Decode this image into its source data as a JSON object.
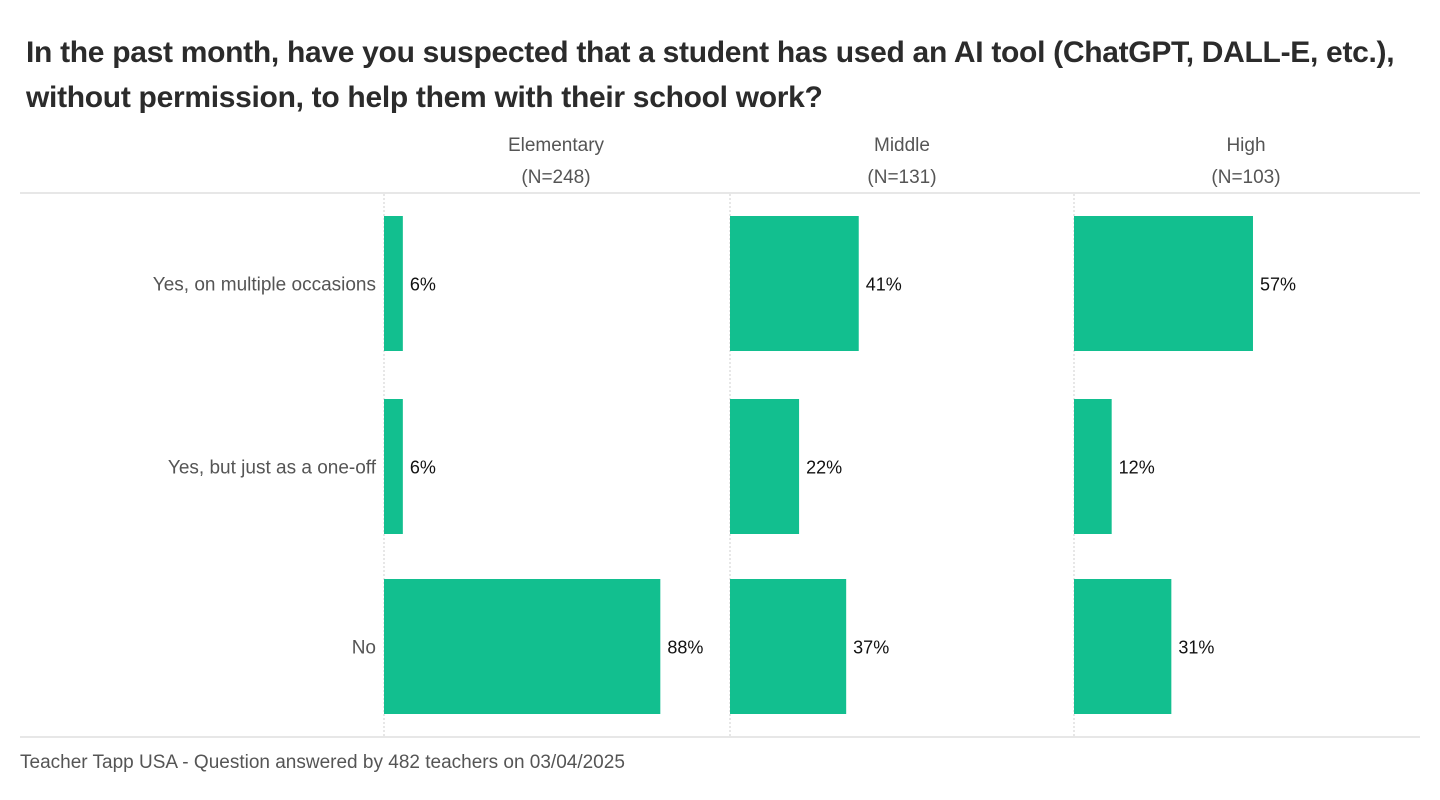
{
  "title": "In the past month, have you suspected that a student has used an AI tool (ChatGPT, DALL-E, etc.), without permission, to help them with their school work?",
  "footer": "Teacher Tapp USA - Question answered by 482 teachers on 03/04/2025",
  "colors": {
    "bar": "#12BF8F",
    "axis": "#cfcfcf"
  },
  "chart_data": {
    "type": "bar",
    "orientation": "horizontal",
    "categories": [
      "Yes, on multiple occasions",
      "Yes, but just as a one-off",
      "No"
    ],
    "series": [
      {
        "name": "Elementary",
        "n_label": "(N=248)",
        "values": [
          6,
          6,
          88
        ],
        "labels": [
          "6%",
          "6%",
          "88%"
        ]
      },
      {
        "name": "Middle",
        "n_label": "(N=131)",
        "values": [
          41,
          22,
          37
        ],
        "labels": [
          "41%",
          "22%",
          "37%"
        ]
      },
      {
        "name": "High",
        "n_label": "(N=103)",
        "values": [
          57,
          12,
          31
        ],
        "labels": [
          "57%",
          "12%",
          "31%"
        ]
      }
    ],
    "xlim": [
      0,
      100
    ],
    "grid": false,
    "legend": "none"
  }
}
